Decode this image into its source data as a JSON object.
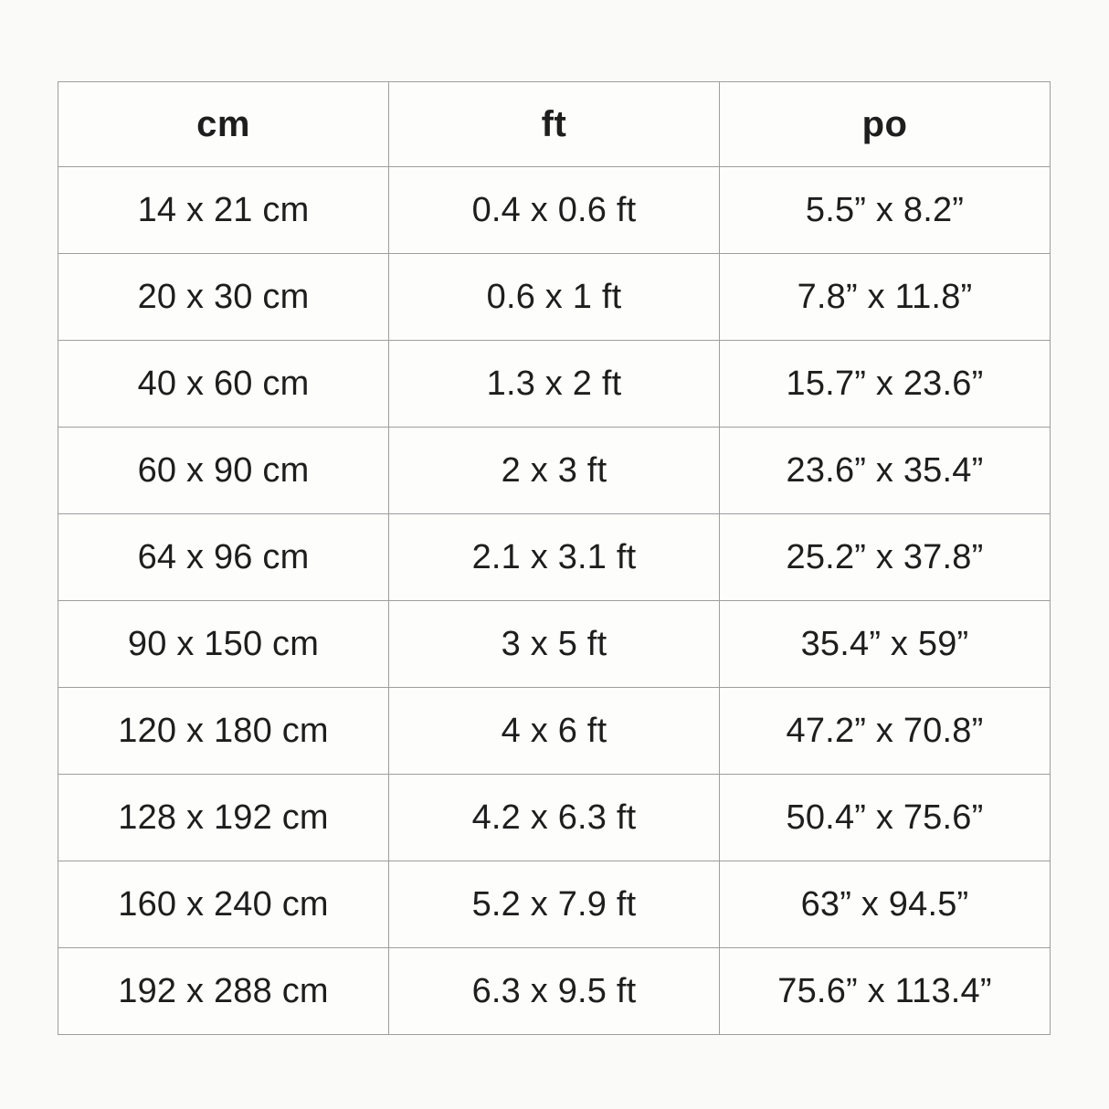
{
  "page": {
    "background_color": "#fafaf8",
    "table_background_color": "#fdfdfc",
    "border_color": "#9e9e9e",
    "text_color": "#1e1e1e"
  },
  "chart_data": {
    "type": "table",
    "title": "",
    "columns": [
      "cm",
      "ft",
      "po"
    ],
    "rows": [
      [
        "14 x 21 cm",
        "0.4 x 0.6 ft",
        "5.5” x 8.2”"
      ],
      [
        "20 x 30 cm",
        "0.6 x 1 ft",
        "7.8” x 11.8”"
      ],
      [
        "40 x 60 cm",
        "1.3 x 2 ft",
        "15.7” x 23.6”"
      ],
      [
        "60 x 90 cm",
        "2 x 3 ft",
        "23.6” x 35.4”"
      ],
      [
        "64 x 96 cm",
        "2.1 x 3.1 ft",
        "25.2” x 37.8”"
      ],
      [
        "90 x 150 cm",
        "3 x 5 ft",
        "35.4” x 59”"
      ],
      [
        "120 x 180 cm",
        "4 x 6 ft",
        "47.2” x 70.8”"
      ],
      [
        "128 x 192 cm",
        "4.2 x 6.3 ft",
        "50.4” x 75.6”"
      ],
      [
        "160 x 240 cm",
        "5.2 x 7.9 ft",
        "63” x 94.5”"
      ],
      [
        "192 x 288 cm",
        "6.3 x 9.5 ft",
        "75.6” x 113.4”"
      ]
    ],
    "layout": {
      "grid": true,
      "header_row": true,
      "cell_alignment": "center"
    }
  }
}
